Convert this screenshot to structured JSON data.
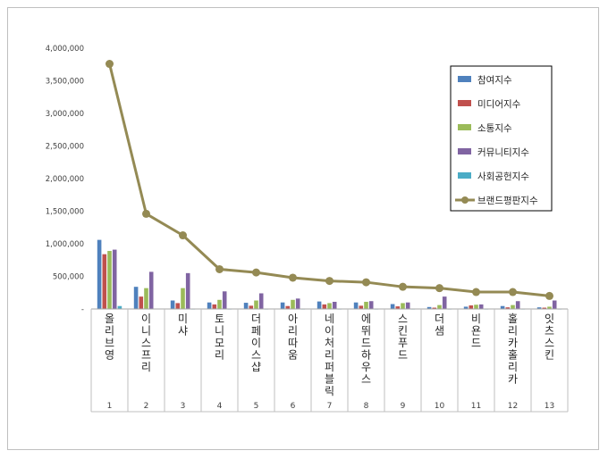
{
  "chart_data": {
    "type": "bar",
    "title": "",
    "xlabel": "",
    "ylabel": "",
    "ylim": [
      0,
      4000000
    ],
    "yticks": [
      "-",
      "500,000",
      "1,000,000",
      "1,500,000",
      "2,000,000",
      "2,500,000",
      "3,000,000",
      "3,500,000",
      "4,000,000"
    ],
    "grid": false,
    "legend_position": "right",
    "categories": [
      "1",
      "2",
      "3",
      "4",
      "5",
      "6",
      "7",
      "8",
      "9",
      "10",
      "11",
      "12",
      "13"
    ],
    "brands": [
      "올리브영",
      "이니스프리",
      "미샤",
      "토니모리",
      "더페이스샵",
      "아리따움",
      "네이처리퍼블릭",
      "에뛰드하우스",
      "스킨푸드",
      "더샘",
      "비욘드",
      "홀리카홀리카",
      "잇츠스킨"
    ],
    "series": [
      {
        "name": "참여지수",
        "kind": "bar",
        "color": "#4f81bd",
        "values": [
          1060000,
          340000,
          130000,
          100000,
          95000,
          100000,
          115000,
          100000,
          75000,
          30000,
          35000,
          45000,
          25000
        ]
      },
      {
        "name": "미디어지수",
        "kind": "bar",
        "color": "#c0504d",
        "values": [
          840000,
          190000,
          90000,
          70000,
          50000,
          45000,
          70000,
          50000,
          40000,
          20000,
          55000,
          25000,
          20000
        ]
      },
      {
        "name": "소통지수",
        "kind": "bar",
        "color": "#9bbb59",
        "values": [
          890000,
          320000,
          320000,
          140000,
          130000,
          140000,
          90000,
          110000,
          90000,
          60000,
          65000,
          60000,
          35000
        ]
      },
      {
        "name": "커뮤니티지수",
        "kind": "bar",
        "color": "#8064a2",
        "values": [
          910000,
          570000,
          550000,
          270000,
          240000,
          160000,
          110000,
          120000,
          100000,
          190000,
          70000,
          120000,
          130000
        ]
      },
      {
        "name": "사회공헌지수",
        "kind": "bar",
        "color": "#4bacc6",
        "values": [
          45000,
          5000,
          3000,
          3000,
          3000,
          3000,
          3000,
          3000,
          3000,
          3000,
          3000,
          3000,
          3000
        ]
      },
      {
        "name": "브랜드평판지수",
        "kind": "line",
        "color": "#948a54",
        "values": [
          3760000,
          1460000,
          1130000,
          610000,
          560000,
          480000,
          430000,
          410000,
          340000,
          320000,
          260000,
          260000,
          200000
        ]
      }
    ]
  }
}
